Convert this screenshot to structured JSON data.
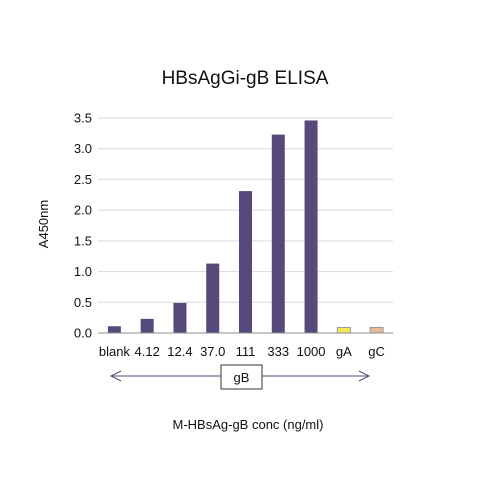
{
  "chart_data": {
    "type": "bar",
    "title": "HBsAgGi-gB ELISA",
    "ylabel": "A450nm",
    "xlabel": "M-HBsAg-gB conc (ng/ml)",
    "group_label": "gB",
    "ylim": [
      0,
      3.5
    ],
    "yticks": [
      "0.0",
      "0.5",
      "1.0",
      "1.5",
      "2.0",
      "2.5",
      "3.0",
      "3.5"
    ],
    "grid": true,
    "categories": [
      "blank",
      "4.12",
      "12.4",
      "37.0",
      "111",
      "333",
      "1000",
      "gA",
      "gC"
    ],
    "values": [
      0.11,
      0.23,
      0.49,
      1.13,
      2.31,
      3.23,
      3.46,
      0.09,
      0.09
    ],
    "colors": [
      "#564a7c",
      "#564a7c",
      "#564a7c",
      "#564a7c",
      "#564a7c",
      "#564a7c",
      "#564a7c",
      "#f5e65a",
      "#e5b89a"
    ],
    "group_arrow_color": "#564a7c"
  }
}
